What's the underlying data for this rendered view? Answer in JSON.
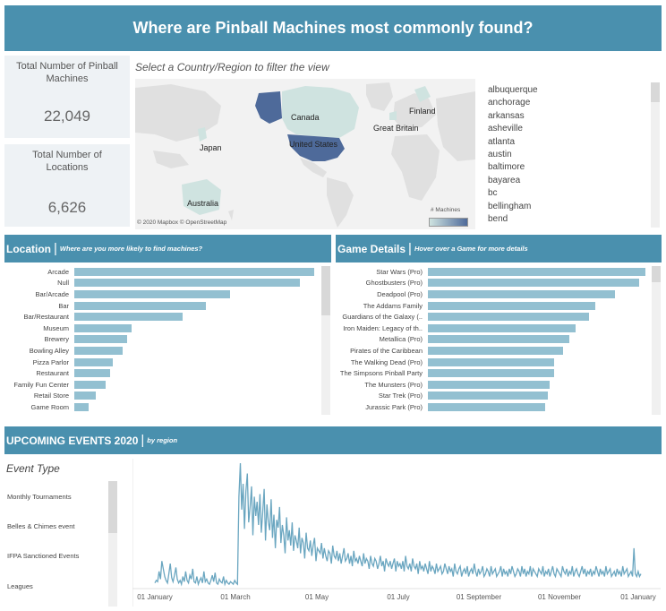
{
  "title": "Where are Pinball Machines most commonly found?",
  "kpis": [
    {
      "label": "Total Number of Pinball Machines",
      "value": "22,049"
    },
    {
      "label": "Total Number of Locations",
      "value": "6,626"
    }
  ],
  "map": {
    "prompt": "Select a Country/Region to filter the view",
    "labels": [
      "Canada",
      "Finland",
      "Great Britain",
      "Japan",
      "United States",
      "Australia"
    ],
    "legend_title": "# Machines",
    "attribution": "© 2020 Mapbox © OpenStreetMap",
    "colors": {
      "high": "#4e6a9a",
      "low": "#cfe3e0",
      "land": "#e0e0e0"
    }
  },
  "cities": [
    "albuquerque",
    "anchorage",
    "arkansas",
    "asheville",
    "atlanta",
    "austin",
    "baltimore",
    "bayarea",
    "bc",
    "bellingham",
    "bend"
  ],
  "location_section": {
    "title": "Location",
    "subtitle": "Where are you more likely to find machines?"
  },
  "game_section": {
    "title": "Game Details",
    "subtitle": "Hover over a Game for more details"
  },
  "events_section": {
    "title": "UPCOMING EVENTS 2020",
    "subtitle": "by region"
  },
  "event_type": {
    "title": "Event Type",
    "items": [
      "Monthly Tournaments",
      "Belles & Chimes event",
      "IFPA Sanctioned Events",
      "Leagues"
    ]
  },
  "chart_data": [
    {
      "type": "bar",
      "orientation": "horizontal",
      "categories": [
        "Arcade",
        "Null",
        "Bar/Arcade",
        "Bar",
        "Bar/Restaurant",
        "Museum",
        "Brewery",
        "Bowling Alley",
        "Pizza Parlor",
        "Restaurant",
        "Family Fun Center",
        "Retail Store",
        "Game Room"
      ],
      "values": [
        100,
        94,
        65,
        55,
        45,
        24,
        22,
        20,
        16,
        15,
        13,
        9,
        6
      ],
      "color": "#93c0d1"
    },
    {
      "type": "bar",
      "orientation": "horizontal",
      "categories": [
        "Star Wars (Pro)",
        "Ghostbusters (Pro)",
        "Deadpool (Pro)",
        "The Addams Family",
        "Guardians of the Galaxy (..",
        "Iron Maiden: Legacy of th..",
        "Metallica (Pro)",
        "Pirates of the Caribbean",
        "The Walking Dead (Pro)",
        "The Simpsons Pinball Party",
        "The Munsters (Pro)",
        "Star Trek (Pro)",
        "Jurassic Park (Pro)"
      ],
      "values": [
        100,
        97,
        86,
        77,
        74,
        68,
        65,
        62,
        58,
        58,
        56,
        55,
        54
      ],
      "color": "#93c0d1"
    },
    {
      "type": "line",
      "x_ticks": [
        "01 January",
        "01 March",
        "01 May",
        "01 July",
        "01 September",
        "01 November",
        "01 January"
      ],
      "color": "#6aa6c0",
      "series": [
        {
          "values": [
            3,
            5,
            4,
            12,
            6,
            20,
            14,
            8,
            5,
            3,
            10,
            18,
            7,
            4,
            9,
            15,
            6,
            3,
            5,
            2,
            8,
            4,
            12,
            5,
            3,
            9,
            6,
            14,
            4,
            3,
            8,
            2,
            5,
            7,
            3,
            12,
            4,
            6,
            3,
            2,
            5,
            9,
            4,
            11,
            3,
            2,
            6,
            4,
            3,
            8,
            2,
            5,
            3,
            2,
            4,
            3,
            2,
            5,
            3,
            2,
            70,
            96,
            60,
            80,
            45,
            74,
            88,
            50,
            62,
            78,
            40,
            70,
            55,
            66,
            48,
            72,
            42,
            58,
            76,
            36,
            64,
            50,
            44,
            68,
            38,
            56,
            30,
            52,
            46,
            62,
            34,
            48,
            40,
            26,
            54,
            36,
            44,
            32,
            50,
            28,
            40,
            36,
            30,
            46,
            26,
            38,
            34,
            22,
            42,
            30,
            28,
            36,
            24,
            32,
            38,
            20,
            30,
            28,
            26,
            34,
            22,
            30,
            24,
            20,
            28,
            26,
            18,
            32,
            24,
            22,
            28,
            20,
            26,
            18,
            24,
            30,
            20,
            22,
            26,
            18,
            24,
            16,
            28,
            20,
            22,
            18,
            24,
            20,
            16,
            26,
            18,
            22,
            20,
            14,
            24,
            18,
            16,
            22,
            20,
            14,
            18,
            24,
            16,
            20,
            12,
            22,
            18,
            16,
            20,
            14,
            18,
            22,
            12,
            20,
            16,
            18,
            14,
            20,
            12,
            24,
            16,
            14,
            18,
            12,
            22,
            16,
            14,
            18,
            10,
            20,
            14,
            16,
            12,
            18,
            14,
            10,
            20,
            12,
            16,
            14,
            10,
            18,
            12,
            14,
            16,
            10,
            12,
            18,
            14,
            10,
            16,
            12,
            14,
            8,
            18,
            12,
            10,
            14,
            16,
            8,
            12,
            14,
            10,
            16,
            8,
            12,
            14,
            10,
            18,
            12,
            8,
            14,
            10,
            12,
            16,
            8,
            10,
            14,
            12,
            8,
            16,
            10,
            12,
            14,
            8,
            10,
            12,
            16,
            8,
            14,
            10,
            12,
            8,
            14,
            10,
            16,
            12,
            8,
            10,
            14,
            12,
            8,
            16,
            10,
            14,
            8,
            12,
            10,
            16,
            8,
            14,
            12,
            10,
            8,
            14,
            12,
            10,
            16,
            8,
            12,
            10,
            14,
            8,
            12,
            16,
            10,
            8,
            14,
            12,
            10,
            8,
            16,
            12,
            10,
            14,
            8,
            12,
            10,
            16,
            8,
            12,
            14,
            10,
            8,
            12,
            16,
            10,
            14,
            8,
            12,
            10,
            14,
            8,
            12,
            10,
            16,
            12,
            8,
            14,
            10,
            12,
            8,
            16,
            10,
            12,
            14,
            8,
            10,
            12,
            8,
            14,
            10,
            12,
            8,
            16,
            10,
            12,
            14,
            8,
            10,
            12,
            8,
            30,
            10,
            8,
            12,
            8,
            10
          ]
        }
      ]
    }
  ]
}
